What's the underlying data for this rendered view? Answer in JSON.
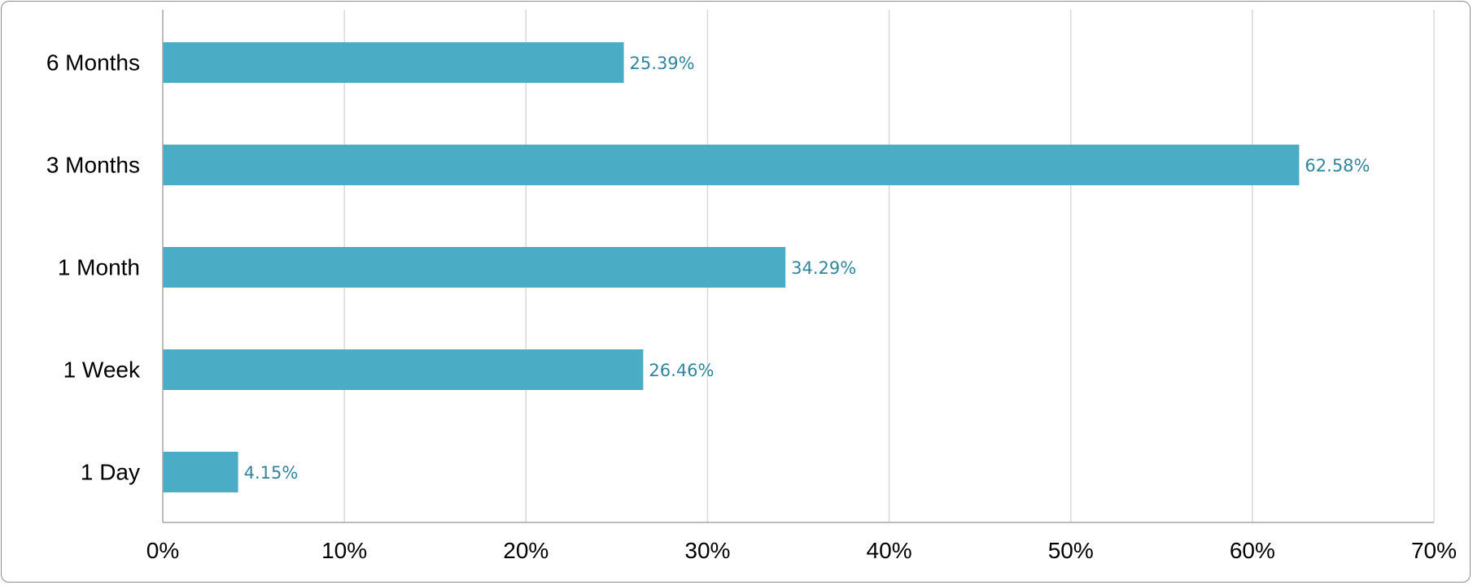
{
  "chart_data": {
    "type": "bar",
    "orientation": "horizontal",
    "categories": [
      "6 Months",
      "3 Months",
      "1 Month",
      "1 Week",
      "1 Day"
    ],
    "values": [
      25.39,
      62.58,
      34.29,
      26.46,
      4.15
    ],
    "data_labels": [
      "25.39%",
      "62.58%",
      "34.29%",
      "26.46%",
      "4.15%"
    ],
    "x_ticks": [
      "0%",
      "10%",
      "20%",
      "30%",
      "40%",
      "50%",
      "60%",
      "70%"
    ],
    "xlim": [
      0,
      70
    ],
    "grid": true,
    "legend": "none",
    "title": "",
    "xlabel": "",
    "ylabel": ""
  },
  "colors": {
    "bar": "#4bacc6",
    "data_label": "#31859c",
    "grid": "#d9d9d9",
    "axis": "#a6a6a6"
  }
}
